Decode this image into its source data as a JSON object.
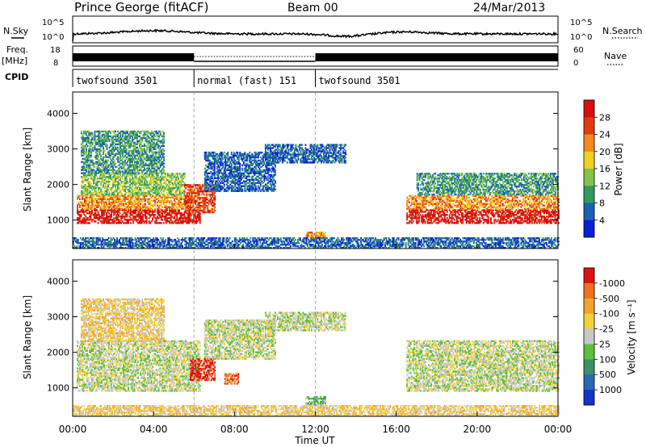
{
  "header": {
    "station": "Prince George (fitACF)",
    "beam": "Beam 00",
    "date": "24/Mar/2013"
  },
  "top_panels": {
    "nsky_label": "N.Sky",
    "nsearch_label": "N.Search",
    "freq_label_1": "Freq.",
    "freq_label_2": "[MHz]",
    "nave_label": "Nave",
    "cpid_label": "CPID",
    "noise_ticks": [
      "10^5",
      "10^0"
    ],
    "freq_ticks": [
      "18",
      "8"
    ],
    "nave_ticks": [
      "60",
      "0"
    ]
  },
  "cpid_segments": [
    {
      "label": "twofsound 3501",
      "start_h": 0,
      "end_h": 6
    },
    {
      "label": "normal (fast) 151",
      "start_h": 6,
      "end_h": 12
    },
    {
      "label": "twofsound 3501",
      "start_h": 12,
      "end_h": 24
    }
  ],
  "chart_data": [
    {
      "type": "heatmap",
      "title": "",
      "ylabel": "Slant Range [km]",
      "xlabel": "",
      "xlim": [
        0,
        24
      ],
      "ylim": [
        200,
        4600
      ],
      "yticks": [
        "1000",
        "2000",
        "3000",
        "4000"
      ],
      "colorbar": {
        "label": "Power [dB]",
        "ticks": [
          "4",
          "8",
          "12",
          "16",
          "20",
          "24",
          "28"
        ],
        "colors": [
          "#0a1ed8",
          "#1c5fb8",
          "#2f9a63",
          "#83c34b",
          "#f0d21e",
          "#f48a1b",
          "#e33a10",
          "#d80f0f"
        ]
      },
      "echo_regions": [
        {
          "t0": 0.2,
          "t1": 6.3,
          "r0": 900,
          "r1": 1300,
          "level": 7
        },
        {
          "t0": 0.2,
          "t1": 5.8,
          "r0": 1300,
          "r1": 1700,
          "level": 5
        },
        {
          "t0": 0.4,
          "t1": 5.5,
          "r0": 1700,
          "r1": 2300,
          "level": 3
        },
        {
          "t0": 0.4,
          "t1": 4.5,
          "r0": 2300,
          "r1": 3500,
          "level": 2
        },
        {
          "t0": 5.5,
          "t1": 7.0,
          "r0": 1200,
          "r1": 2000,
          "level": 6
        },
        {
          "t0": 6.5,
          "t1": 10.0,
          "r0": 1800,
          "r1": 2900,
          "level": 1
        },
        {
          "t0": 9.5,
          "t1": 13.5,
          "r0": 2600,
          "r1": 3100,
          "level": 1
        },
        {
          "t0": 11.5,
          "t1": 12.5,
          "r0": 450,
          "r1": 650,
          "level": 5
        },
        {
          "t0": 16.5,
          "t1": 24.0,
          "r0": 900,
          "r1": 1300,
          "level": 7
        },
        {
          "t0": 16.5,
          "t1": 24.0,
          "r0": 1300,
          "r1": 1700,
          "level": 5
        },
        {
          "t0": 17.0,
          "t1": 24.0,
          "r0": 1700,
          "r1": 2300,
          "level": 2
        },
        {
          "t0": 0.0,
          "t1": 24.0,
          "r0": 200,
          "r1": 500,
          "level": 1
        }
      ]
    },
    {
      "type": "heatmap",
      "title": "",
      "ylabel": "Slant Range [km]",
      "xlabel": "Time UT",
      "xlim": [
        0,
        24
      ],
      "ylim": [
        200,
        4600
      ],
      "yticks": [
        "1000",
        "2000",
        "3000",
        "4000"
      ],
      "xticks": [
        "00:00",
        "04:00",
        "08:00",
        "12:00",
        "16:00",
        "20:00",
        "00:00"
      ],
      "colorbar": {
        "label": "Velocity [m s⁻¹]",
        "ticks": [
          "1000",
          "500",
          "100",
          "25",
          "-25",
          "-100",
          "-500",
          "-1000"
        ],
        "colors": [
          "#1433c8",
          "#2a66b5",
          "#3c8f6a",
          "#58c03c",
          "#c8c8c8",
          "#f4d03a",
          "#f2a330",
          "#f0701d",
          "#e01010"
        ]
      },
      "echo_regions": [
        {
          "t0": 0.2,
          "t1": 6.3,
          "r0": 900,
          "r1": 2300,
          "level": 4
        },
        {
          "t0": 0.4,
          "t1": 4.5,
          "r0": 2300,
          "r1": 3500,
          "level": 5
        },
        {
          "t0": 6.5,
          "t1": 10.0,
          "r0": 1800,
          "r1": 2900,
          "level": 4
        },
        {
          "t0": 9.5,
          "t1": 13.5,
          "r0": 2600,
          "r1": 3100,
          "level": 4
        },
        {
          "t0": 5.8,
          "t1": 7.0,
          "r0": 1200,
          "r1": 1800,
          "level": 8
        },
        {
          "t0": 7.5,
          "t1": 8.2,
          "r0": 1100,
          "r1": 1400,
          "level": 7
        },
        {
          "t0": 11.5,
          "t1": 12.5,
          "r0": 500,
          "r1": 750,
          "level": 3
        },
        {
          "t0": 16.5,
          "t1": 24.0,
          "r0": 900,
          "r1": 2300,
          "level": 4
        },
        {
          "t0": 0.0,
          "t1": 24.0,
          "r0": 200,
          "r1": 500,
          "level": 5
        }
      ]
    }
  ]
}
